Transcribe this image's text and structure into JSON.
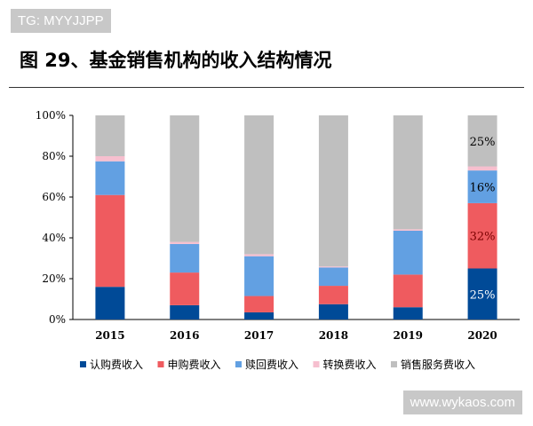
{
  "watermarks": {
    "top": "TG: MYYJJPP",
    "bottom": "www.wykaos.com"
  },
  "chart_data": {
    "type": "bar",
    "stacked": true,
    "title": "图 29、基金销售机构的收入结构情况",
    "categories": [
      "2015",
      "2016",
      "2017",
      "2018",
      "2019",
      "2020"
    ],
    "ylim": [
      0,
      100
    ],
    "yticks": [
      "0%",
      "20%",
      "40%",
      "60%",
      "80%",
      "100%"
    ],
    "legend_position": "bottom",
    "grid": false,
    "series": [
      {
        "name": "认购费收入",
        "color": "#004a97",
        "values": [
          16,
          7,
          3.5,
          7.5,
          6,
          25
        ]
      },
      {
        "name": "申购费收入",
        "color": "#ef5b5f",
        "values": [
          45,
          16,
          8,
          9,
          16,
          32
        ]
      },
      {
        "name": "赎回费收入",
        "color": "#62a0e2",
        "values": [
          16.5,
          14,
          19.5,
          9,
          21.5,
          16
        ]
      },
      {
        "name": "转换费收入",
        "color": "#f6bfcf",
        "values": [
          2.5,
          1,
          1,
          0.5,
          0.7,
          2
        ]
      },
      {
        "name": "销售服务费收入",
        "color": "#bfbfbf",
        "values": [
          20,
          62,
          68,
          74,
          55.8,
          25
        ]
      }
    ],
    "data_labels": [
      {
        "category": "2020",
        "series": 0,
        "text": "25%"
      },
      {
        "category": "2020",
        "series": 1,
        "text": "32%"
      },
      {
        "category": "2020",
        "series": 2,
        "text": "16%"
      },
      {
        "category": "2020",
        "series": 4,
        "text": "25%"
      }
    ]
  }
}
